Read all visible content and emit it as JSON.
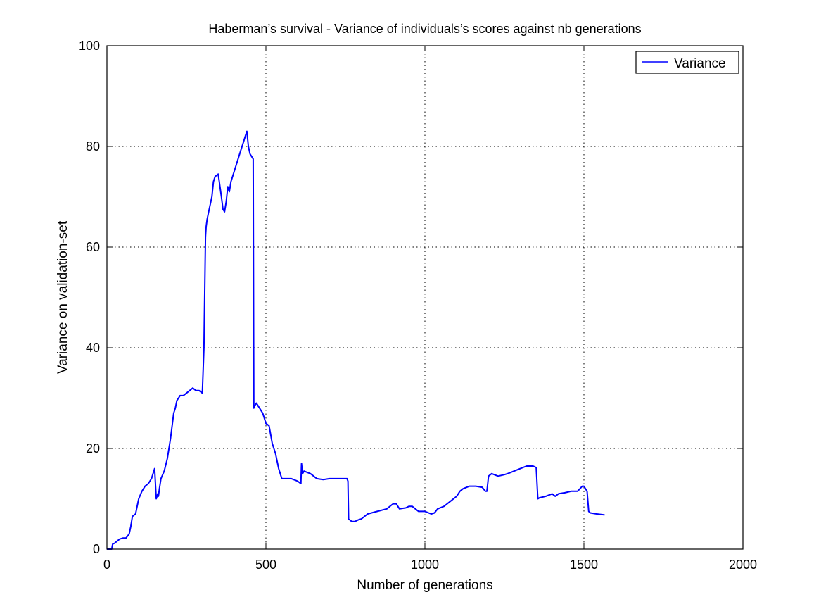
{
  "chart_data": {
    "type": "line",
    "title": "Haberman’s survival - Variance of individuals’s scores against nb generations",
    "xlabel": "Number of generations",
    "ylabel": "Variance on validation-set",
    "xlim": [
      0,
      2000
    ],
    "ylim": [
      0,
      100
    ],
    "xticks": [
      0,
      500,
      1000,
      1500,
      2000
    ],
    "yticks": [
      0,
      20,
      40,
      60,
      80,
      100
    ],
    "xtick_labels": [
      "0",
      "500",
      "1000",
      "1500",
      "2000"
    ],
    "ytick_labels": [
      "0",
      "20",
      "40",
      "60",
      "80",
      "100"
    ],
    "grid": true,
    "legend_position": "top-right",
    "series": [
      {
        "name": "Variance",
        "color": "#0000ff",
        "x": [
          0,
          15,
          18,
          25,
          30,
          40,
          50,
          60,
          70,
          75,
          80,
          90,
          100,
          110,
          120,
          130,
          140,
          150,
          155,
          160,
          162,
          165,
          170,
          180,
          190,
          200,
          210,
          215,
          220,
          225,
          230,
          240,
          250,
          260,
          270,
          280,
          290,
          300,
          305,
          310,
          312,
          315,
          320,
          330,
          335,
          340,
          350,
          360,
          365,
          370,
          375,
          380,
          385,
          390,
          400,
          410,
          420,
          430,
          435,
          440,
          445,
          450,
          455,
          460,
          462,
          465,
          470,
          480,
          490,
          500,
          510,
          520,
          530,
          540,
          550,
          560,
          580,
          600,
          610,
          612,
          615,
          620,
          640,
          650,
          660,
          680,
          700,
          720,
          740,
          755,
          758,
          760,
          770,
          780,
          790,
          800,
          820,
          850,
          880,
          900,
          910,
          920,
          940,
          950,
          960,
          970,
          980,
          1000,
          1020,
          1030,
          1040,
          1060,
          1080,
          1100,
          1110,
          1120,
          1140,
          1160,
          1180,
          1190,
          1195,
          1200,
          1210,
          1230,
          1250,
          1260,
          1280,
          1300,
          1320,
          1340,
          1350,
          1355,
          1360,
          1380,
          1400,
          1410,
          1420,
          1440,
          1460,
          1480,
          1495,
          1500,
          1510,
          1515,
          1520,
          1540,
          1565
        ],
        "y": [
          0,
          0,
          1,
          1.2,
          1.5,
          2,
          2.2,
          2.2,
          3,
          4.5,
          6.5,
          7,
          10,
          11.5,
          12.5,
          13,
          14,
          16,
          10,
          11,
          10.5,
          12,
          14,
          15.5,
          18,
          22,
          27,
          28,
          29.5,
          30,
          30.5,
          30.5,
          31,
          31.5,
          32,
          31.5,
          31.5,
          31,
          40,
          62,
          64,
          65.5,
          67,
          70,
          73,
          74,
          74.5,
          70,
          67.5,
          67,
          69,
          72,
          71,
          73,
          75,
          77,
          79,
          81,
          82,
          83,
          80,
          78.5,
          78,
          77.5,
          28,
          28.5,
          29,
          28,
          27,
          25,
          24.5,
          21,
          19,
          16,
          14,
          14,
          14,
          13.5,
          13,
          17,
          15,
          15.5,
          15,
          14.5,
          14,
          13.8,
          14,
          14,
          14,
          14,
          13.5,
          6,
          5.5,
          5.5,
          5.8,
          6,
          7,
          7.5,
          8,
          9,
          9,
          8,
          8.2,
          8.5,
          8.5,
          8,
          7.5,
          7.5,
          7,
          7.2,
          8,
          8.5,
          9.5,
          10.5,
          11.5,
          12,
          12.5,
          12.5,
          12.3,
          11.5,
          11.5,
          14.5,
          15,
          14.5,
          14.8,
          15,
          15.5,
          16,
          16.5,
          16.5,
          16.2,
          10,
          10.2,
          10.5,
          11,
          10.5,
          11,
          11.2,
          11.5,
          11.5,
          12.5,
          12.5,
          11.5,
          7.5,
          7.2,
          7,
          6.8
        ]
      }
    ]
  }
}
